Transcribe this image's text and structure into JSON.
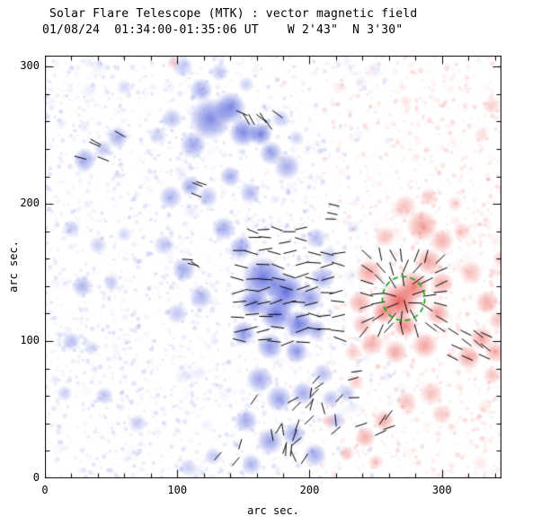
{
  "title": "Solar Flare Telescope (MTK) : vector magnetic field",
  "subtitle": "01/08/24  01:34:00-01:35:06 UT    W 2'43\"  N 3'30\"",
  "axes": {
    "x": {
      "label": "arc sec.",
      "ticks": [
        0,
        100,
        200,
        300
      ],
      "minor_step": 20
    },
    "y": {
      "label": "arc sec.",
      "ticks": [
        0,
        100,
        200,
        300
      ],
      "minor_step": 20
    }
  },
  "chart_data": {
    "type": "heatmap",
    "title": "Solar Flare Telescope (MTK) : vector magnetic field",
    "subtitle": "01/08/24  01:34:00-01:35:06 UT    W 2'43\"  N 3'30\"",
    "xlabel": "arc sec.",
    "ylabel": "arc sec.",
    "x_range": [
      0,
      345
    ],
    "y_range": [
      0,
      308
    ],
    "grid": false,
    "legend": "none",
    "colors": {
      "background": "#ffffff",
      "axis": "#000000",
      "vector": "#000000",
      "negative_rgb": "70,85,215",
      "positive_rgb": "232,72,66",
      "flare_circle": "#00a800"
    },
    "polarity_legend": {
      "n": "negative (blue)",
      "p": "positive (red)"
    },
    "blob_fields": [
      "x_arcsec",
      "y_arcsec",
      "radius_arcsec",
      "strength",
      "polarity"
    ],
    "blobs": [
      [
        125,
        262,
        16,
        0.7,
        "n"
      ],
      [
        140,
        270,
        12,
        0.72,
        "n"
      ],
      [
        150,
        252,
        11,
        0.7,
        "n"
      ],
      [
        163,
        251,
        9,
        0.72,
        "n"
      ],
      [
        171,
        237,
        9,
        0.55,
        "n"
      ],
      [
        183,
        227,
        10,
        0.5,
        "n"
      ],
      [
        112,
        243,
        10,
        0.55,
        "n"
      ],
      [
        118,
        283,
        9,
        0.5,
        "n"
      ],
      [
        104,
        300,
        8,
        0.35,
        "n"
      ],
      [
        132,
        296,
        7,
        0.35,
        "n"
      ],
      [
        96,
        262,
        8,
        0.4,
        "n"
      ],
      [
        85,
        250,
        7,
        0.3,
        "n"
      ],
      [
        30,
        232,
        9,
        0.5,
        "n"
      ],
      [
        55,
        248,
        8,
        0.45,
        "n"
      ],
      [
        44,
        240,
        7,
        0.35,
        "n"
      ],
      [
        20,
        182,
        7,
        0.3,
        "n"
      ],
      [
        40,
        170,
        7,
        0.3,
        "n"
      ],
      [
        60,
        178,
        6,
        0.25,
        "n"
      ],
      [
        28,
        140,
        8,
        0.45,
        "n"
      ],
      [
        50,
        142,
        6,
        0.3,
        "n"
      ],
      [
        20,
        100,
        7,
        0.4,
        "n"
      ],
      [
        35,
        95,
        6,
        0.25,
        "n"
      ],
      [
        15,
        62,
        6,
        0.3,
        "n"
      ],
      [
        45,
        60,
        7,
        0.35,
        "n"
      ],
      [
        70,
        40,
        7,
        0.3,
        "n"
      ],
      [
        95,
        205,
        9,
        0.45,
        "n"
      ],
      [
        110,
        213,
        8,
        0.5,
        "n"
      ],
      [
        123,
        205,
        8,
        0.4,
        "n"
      ],
      [
        90,
        170,
        8,
        0.35,
        "n"
      ],
      [
        105,
        152,
        9,
        0.5,
        "n"
      ],
      [
        118,
        132,
        9,
        0.45,
        "n"
      ],
      [
        100,
        120,
        8,
        0.35,
        "n"
      ],
      [
        135,
        182,
        9,
        0.5,
        "n"
      ],
      [
        148,
        168,
        9,
        0.55,
        "n"
      ],
      [
        140,
        220,
        8,
        0.5,
        "n"
      ],
      [
        155,
        208,
        8,
        0.45,
        "n"
      ],
      [
        165,
        146,
        16,
        0.8,
        "n"
      ],
      [
        182,
        136,
        14,
        0.85,
        "n"
      ],
      [
        175,
        120,
        13,
        0.8,
        "n"
      ],
      [
        192,
        112,
        11,
        0.75,
        "n"
      ],
      [
        158,
        128,
        11,
        0.75,
        "n"
      ],
      [
        200,
        131,
        10,
        0.6,
        "n"
      ],
      [
        210,
        146,
        9,
        0.5,
        "n"
      ],
      [
        150,
        106,
        9,
        0.6,
        "n"
      ],
      [
        170,
        96,
        10,
        0.6,
        "n"
      ],
      [
        190,
        92,
        9,
        0.55,
        "n"
      ],
      [
        205,
        108,
        8,
        0.5,
        "n"
      ],
      [
        205,
        175,
        8,
        0.4,
        "n"
      ],
      [
        215,
        162,
        7,
        0.35,
        "n"
      ],
      [
        162,
        72,
        10,
        0.55,
        "n"
      ],
      [
        177,
        58,
        10,
        0.55,
        "n"
      ],
      [
        195,
        62,
        9,
        0.5,
        "n"
      ],
      [
        210,
        76,
        8,
        0.4,
        "n"
      ],
      [
        152,
        42,
        9,
        0.5,
        "n"
      ],
      [
        170,
        27,
        10,
        0.55,
        "n"
      ],
      [
        188,
        32,
        9,
        0.5,
        "n"
      ],
      [
        204,
        17,
        9,
        0.5,
        "n"
      ],
      [
        156,
        10,
        8,
        0.45,
        "n"
      ],
      [
        127,
        16,
        7,
        0.35,
        "n"
      ],
      [
        108,
        8,
        7,
        0.3,
        "n"
      ],
      [
        220,
        42,
        7,
        0.35,
        "n"
      ],
      [
        228,
        62,
        7,
        0.35,
        "n"
      ],
      [
        216,
        58,
        7,
        0.4,
        "n"
      ],
      [
        60,
        285,
        6,
        0.25,
        "n"
      ],
      [
        152,
        287,
        6,
        0.3,
        "n"
      ],
      [
        178,
        262,
        7,
        0.35,
        "n"
      ],
      [
        190,
        248,
        6,
        0.3,
        "n"
      ],
      [
        268,
        129,
        14,
        0.85,
        "p"
      ],
      [
        279,
        140,
        11,
        0.7,
        "p"
      ],
      [
        256,
        121,
        9,
        0.65,
        "p"
      ],
      [
        272,
        111,
        9,
        0.65,
        "p"
      ],
      [
        245,
        150,
        10,
        0.5,
        "p"
      ],
      [
        290,
        158,
        10,
        0.5,
        "p"
      ],
      [
        300,
        142,
        9,
        0.45,
        "p"
      ],
      [
        297,
        120,
        9,
        0.5,
        "p"
      ],
      [
        287,
        97,
        10,
        0.5,
        "p"
      ],
      [
        265,
        92,
        9,
        0.45,
        "p"
      ],
      [
        247,
        98,
        9,
        0.45,
        "p"
      ],
      [
        238,
        128,
        9,
        0.45,
        "p"
      ],
      [
        240,
        112,
        8,
        0.4,
        "p"
      ],
      [
        285,
        184,
        12,
        0.5,
        "p"
      ],
      [
        272,
        198,
        9,
        0.35,
        "p"
      ],
      [
        300,
        173,
        9,
        0.45,
        "p"
      ],
      [
        257,
        176,
        8,
        0.35,
        "p"
      ],
      [
        290,
        205,
        7,
        0.3,
        "p"
      ],
      [
        322,
        150,
        9,
        0.35,
        "p"
      ],
      [
        334,
        128,
        9,
        0.45,
        "p"
      ],
      [
        330,
        102,
        9,
        0.5,
        "p"
      ],
      [
        320,
        88,
        9,
        0.5,
        "p"
      ],
      [
        340,
        92,
        8,
        0.45,
        "p"
      ],
      [
        342,
        115,
        7,
        0.35,
        "p"
      ],
      [
        345,
        160,
        7,
        0.3,
        "p"
      ],
      [
        338,
        75,
        7,
        0.35,
        "p"
      ],
      [
        292,
        62,
        9,
        0.35,
        "p"
      ],
      [
        273,
        56,
        8,
        0.35,
        "p"
      ],
      [
        300,
        47,
        8,
        0.3,
        "p"
      ],
      [
        256,
        42,
        8,
        0.45,
        "p"
      ],
      [
        242,
        30,
        8,
        0.45,
        "p"
      ],
      [
        228,
        18,
        6,
        0.35,
        "p"
      ],
      [
        250,
        12,
        6,
        0.3,
        "p"
      ],
      [
        214,
        42,
        5,
        0.3,
        "p"
      ],
      [
        233,
        92,
        7,
        0.3,
        "p"
      ],
      [
        235,
        70,
        6,
        0.3,
        "p"
      ],
      [
        97,
        303,
        5,
        0.3,
        "p"
      ],
      [
        338,
        272,
        7,
        0.25,
        "p"
      ],
      [
        330,
        250,
        6,
        0.2,
        "p"
      ],
      [
        315,
        180,
        7,
        0.3,
        "p"
      ],
      [
        310,
        200,
        6,
        0.25,
        "p"
      ]
    ],
    "vector_clusters": [
      {
        "region": [
          142,
          95,
          226,
          170
        ],
        "mode": "grid",
        "cols": 9,
        "rows": 8,
        "angle_deg": 0,
        "jitter_deg": 22,
        "len_arcsec": 10
      },
      {
        "region": [
          153,
          170,
          196,
          185
        ],
        "mode": "grid",
        "cols": 5,
        "rows": 2,
        "angle_deg": -5,
        "jitter_deg": 18,
        "len_arcsec": 9
      },
      {
        "region": [
          147,
          243,
          182,
          267
        ],
        "mode": "random",
        "count": 7,
        "angle_deg": -42,
        "jitter_deg": 22,
        "len_arcsec": 9
      },
      {
        "region": [
          22,
          228,
          58,
          252
        ],
        "mode": "random",
        "count": 5,
        "angle_deg": -32,
        "jitter_deg": 22,
        "len_arcsec": 9
      },
      {
        "region": [
          100,
          148,
          122,
          164
        ],
        "mode": "random",
        "count": 3,
        "angle_deg": -20,
        "jitter_deg": 18,
        "len_arcsec": 8
      },
      {
        "region": [
          96,
          204,
          122,
          220
        ],
        "mode": "random",
        "count": 3,
        "angle_deg": -30,
        "jitter_deg": 18,
        "len_arcsec": 8
      },
      {
        "region": [
          238,
          104,
          304,
          166
        ],
        "mode": "radial",
        "cols": 7,
        "rows": 7,
        "center": [
          270,
          131
        ],
        "jitter_deg": 18,
        "len_arcsec": 10
      },
      {
        "region": [
          306,
          84,
          338,
          110
        ],
        "mode": "grid",
        "cols": 4,
        "rows": 3,
        "angle_deg": -35,
        "jitter_deg": 16,
        "len_arcsec": 9
      },
      {
        "region": [
          158,
          14,
          224,
          58
        ],
        "mode": "random",
        "count": 20,
        "angle_deg": 70,
        "jitter_deg": 45,
        "len_arcsec": 9
      },
      {
        "region": [
          236,
          30,
          264,
          56
        ],
        "mode": "random",
        "count": 5,
        "angle_deg": 40,
        "jitter_deg": 22,
        "len_arcsec": 9
      },
      {
        "region": [
          203,
          186,
          222,
          200
        ],
        "mode": "random",
        "count": 3,
        "angle_deg": -12,
        "jitter_deg": 14,
        "len_arcsec": 8
      },
      {
        "region": [
          126,
          10,
          148,
          26
        ],
        "mode": "random",
        "count": 3,
        "angle_deg": 60,
        "jitter_deg": 18,
        "len_arcsec": 8
      },
      {
        "region": [
          196,
          56,
          216,
          72
        ],
        "mode": "random",
        "count": 4,
        "angle_deg": 55,
        "jitter_deg": 28,
        "len_arcsec": 8
      },
      {
        "region": [
          220,
          56,
          240,
          78
        ],
        "mode": "random",
        "count": 4,
        "angle_deg": 25,
        "jitter_deg": 28,
        "len_arcsec": 8
      }
    ],
    "flare_circle": {
      "x": 271,
      "y": 131,
      "r": 16,
      "color": "#00a800",
      "style": "dashed"
    },
    "noise": {
      "seed": 7,
      "speckle_count": 3600,
      "patch_count": 160,
      "boundary_x": 228,
      "boundary_fuzz": 110
    }
  }
}
